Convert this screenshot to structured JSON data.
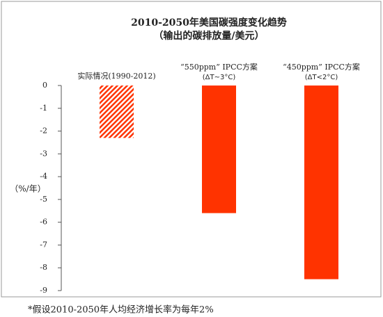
{
  "chart_data": {
    "type": "bar",
    "title": "2010-2050年美国碳强度变化趋势",
    "subtitle": "（输出的碳排放量/美元）",
    "y_label": "（%/年）",
    "footnote": "*假设2010-2050年人均经济增长率为每年2%",
    "categories": [
      "实际情况(1990-2012)",
      "“550ppm” IPCC方案",
      "“450ppm” IPCC方案"
    ],
    "category_sublabels": [
      null,
      "(ΔT~3°C)",
      "(ΔT<2°C)"
    ],
    "values": [
      -2.3,
      -5.6,
      -8.5
    ],
    "color": "#ff3300",
    "pattern": [
      "hatch",
      "solid",
      "solid"
    ],
    "ylim": [
      -9,
      0
    ],
    "yticks": [
      0,
      -1,
      -2,
      -3,
      -4,
      -5,
      -6,
      -7,
      -8,
      -9
    ],
    "grid": false
  }
}
